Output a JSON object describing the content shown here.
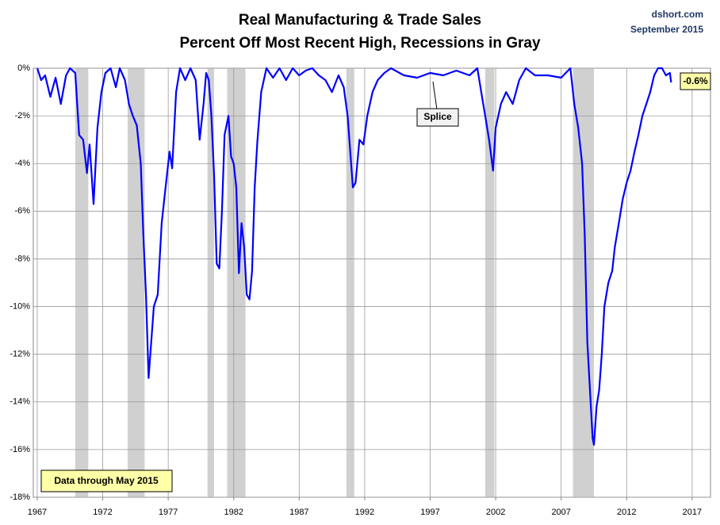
{
  "chart_data": {
    "type": "line",
    "title": "Real Manufacturing & Trade Sales",
    "subtitle": "Percent Off Most Recent High, Recessions in Gray",
    "source": "dshort.com",
    "date": "September 2015",
    "annotations": [
      "Splice",
      "Data through May 2015"
    ],
    "last_label": "-0.6%",
    "grid": true,
    "recession_color": "#d0d0d0",
    "recessions": [
      [
        1969.9,
        1970.9
      ],
      [
        1973.9,
        1975.2
      ],
      [
        1980.0,
        1980.5
      ],
      [
        1981.5,
        1982.9
      ],
      [
        1990.6,
        1991.2
      ],
      [
        2001.2,
        2001.9
      ],
      [
        2007.9,
        2009.5
      ]
    ],
    "xlim": [
      1966.7,
      2018.4
    ],
    "xticks": [
      1967,
      1972,
      1977,
      1982,
      1987,
      1992,
      1997,
      2002,
      2007,
      2012,
      2017
    ],
    "ylim": [
      -18,
      0
    ],
    "yticks": [
      {
        "value": 0,
        "label": "0%"
      },
      {
        "value": -2,
        "label": "-2%"
      },
      {
        "value": -4,
        "label": "-4%"
      },
      {
        "value": -6,
        "label": "-6%"
      },
      {
        "value": -8,
        "label": "-8%"
      },
      {
        "value": -10,
        "label": "-10%"
      },
      {
        "value": -12,
        "label": "-12%"
      },
      {
        "value": -14,
        "label": "-14%"
      },
      {
        "value": -16,
        "label": "-16%"
      },
      {
        "value": -18,
        "label": "-18%"
      }
    ],
    "x": [
      1967.0,
      1967.3,
      1967.6,
      1968.0,
      1968.4,
      1968.8,
      1969.2,
      1969.5,
      1969.9,
      1970.2,
      1970.5,
      1970.8,
      1971.0,
      1971.3,
      1971.6,
      1971.9,
      1972.2,
      1972.6,
      1973.0,
      1973.3,
      1973.7,
      1974.0,
      1974.3,
      1974.6,
      1974.9,
      1975.1,
      1975.3,
      1975.5,
      1975.7,
      1975.9,
      1976.2,
      1976.5,
      1976.8,
      1977.1,
      1977.3,
      1977.6,
      1977.9,
      1978.3,
      1978.7,
      1979.1,
      1979.4,
      1979.7,
      1979.9,
      1980.1,
      1980.3,
      1980.5,
      1980.7,
      1980.9,
      1981.1,
      1981.3,
      1981.6,
      1981.8,
      1982.0,
      1982.2,
      1982.4,
      1982.6,
      1982.8,
      1983.0,
      1983.2,
      1983.4,
      1983.6,
      1983.8,
      1984.1,
      1984.5,
      1985.0,
      1985.5,
      1986.0,
      1986.5,
      1987.0,
      1987.5,
      1988.0,
      1988.5,
      1989.0,
      1989.5,
      1990.0,
      1990.4,
      1990.7,
      1990.9,
      1991.1,
      1991.3,
      1991.6,
      1991.9,
      1992.2,
      1992.6,
      1993.0,
      1993.5,
      1994.0,
      1995.0,
      1996.0,
      1997.0,
      1998.0,
      1999.0,
      2000.0,
      2000.6,
      2000.9,
      2001.2,
      2001.5,
      2001.8,
      2002.0,
      2002.4,
      2002.8,
      2003.3,
      2003.8,
      2004.3,
      2005.0,
      2006.0,
      2007.0,
      2007.7,
      2008.0,
      2008.3,
      2008.6,
      2008.8,
      2009.0,
      2009.2,
      2009.4,
      2009.5,
      2009.7,
      2009.9,
      2010.1,
      2010.3,
      2010.6,
      2010.9,
      2011.1,
      2011.4,
      2011.7,
      2012.0,
      2012.3,
      2012.6,
      2012.9,
      2013.2,
      2013.5,
      2013.8,
      2014.1,
      2014.4,
      2014.7,
      2015.0,
      2015.3,
      2015.4
    ],
    "series": [
      {
        "name": "Percent Off High",
        "color": "#0000ff",
        "values": [
          0,
          -0.5,
          -0.3,
          -1.2,
          -0.4,
          -1.5,
          -0.3,
          0,
          -0.2,
          -2.8,
          -3.0,
          -4.4,
          -3.2,
          -5.7,
          -2.5,
          -1.0,
          -0.2,
          0,
          -0.8,
          0,
          -0.5,
          -1.5,
          -2.0,
          -2.4,
          -4.0,
          -7.0,
          -9.5,
          -13.0,
          -11.5,
          -10.0,
          -9.5,
          -6.5,
          -5.0,
          -3.5,
          -4.2,
          -1.0,
          0,
          -0.5,
          0,
          -0.5,
          -3.0,
          -1.5,
          -0.2,
          -0.5,
          -2.0,
          -4.5,
          -8.2,
          -8.4,
          -6.0,
          -2.8,
          -2.0,
          -3.7,
          -4.0,
          -5.0,
          -8.6,
          -6.5,
          -7.5,
          -9.5,
          -9.7,
          -8.5,
          -5.0,
          -3.1,
          -1.0,
          0,
          -0.4,
          0,
          -0.5,
          0,
          -0.3,
          -0.1,
          0,
          -0.3,
          -0.5,
          -1.0,
          -0.3,
          -0.8,
          -2.0,
          -3.5,
          -5.0,
          -4.8,
          -3.0,
          -3.2,
          -2.0,
          -1.0,
          -0.5,
          -0.2,
          0,
          -0.3,
          -0.4,
          -0.2,
          -0.3,
          -0.1,
          -0.3,
          0,
          -1.0,
          -2.0,
          -3.0,
          -4.3,
          -2.5,
          -1.5,
          -1.0,
          -1.5,
          -0.5,
          0,
          -0.3,
          -0.3,
          -0.4,
          0,
          -1.5,
          -2.5,
          -4.0,
          -7.0,
          -11.5,
          -13.5,
          -15.5,
          -15.8,
          -14.2,
          -13.5,
          -12.0,
          -10.0,
          -9.0,
          -8.5,
          -7.5,
          -6.5,
          -5.5,
          -4.8,
          -4.3,
          -3.5,
          -2.8,
          -2.0,
          -1.5,
          -1.0,
          -0.3,
          0,
          0,
          -0.3,
          -0.2,
          -0.6
        ]
      }
    ]
  }
}
